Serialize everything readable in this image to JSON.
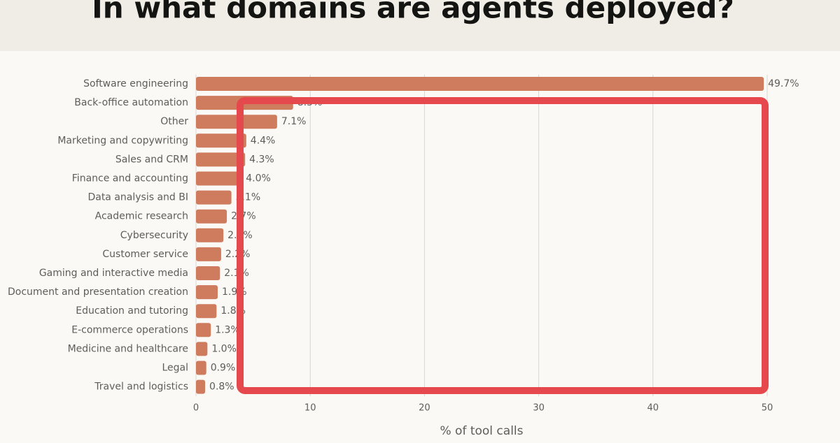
{
  "chart_data": {
    "type": "barh",
    "title": "In what domains are agents deployed?",
    "categories": [
      "Software engineering",
      "Back-office automation",
      "Other",
      "Marketing and copywriting",
      "Sales and CRM",
      "Finance and accounting",
      "Data analysis and BI",
      "Academic research",
      "Cybersecurity",
      "Customer service",
      "Gaming and interactive media",
      "Document and presentation creation",
      "Education and tutoring",
      "E-commerce operations",
      "Medicine and healthcare",
      "Legal",
      "Travel and logistics"
    ],
    "values": [
      49.7,
      8.5,
      7.1,
      4.4,
      4.3,
      4.0,
      3.1,
      2.7,
      2.4,
      2.2,
      2.1,
      1.9,
      1.8,
      1.3,
      1.0,
      0.9,
      0.8
    ],
    "value_labels": [
      "49.7%",
      "8.5%",
      "7.1%",
      "4.4%",
      "4.3%",
      "4.0%",
      "3.1%",
      "2.7%",
      "2.4%",
      "2.2%",
      "2.1%",
      "1.9%",
      "1.8%",
      "1.3%",
      "1.0%",
      "0.9%",
      "0.8%"
    ],
    "color": "#cf7b5e",
    "xlim": [
      0,
      50
    ],
    "xticks": [
      0,
      10,
      20,
      30,
      40,
      50
    ],
    "grid": true,
    "x_label": "% of tool calls"
  }
}
